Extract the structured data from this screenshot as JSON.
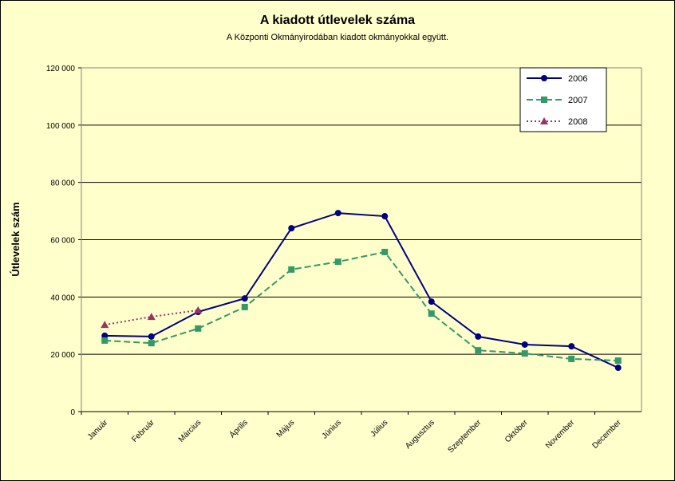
{
  "chart_data": {
    "type": "line",
    "title": "A  kiadott útlevelek száma",
    "subtitle": "A Központi Okmányirodában kiadott okmányokkal együtt.",
    "y_label": "Útlevelek szám",
    "categories": [
      "Január",
      "Február",
      "Március",
      "Április",
      "Május",
      "Június",
      "Július",
      "Augusztus",
      "Szeptember",
      "Október",
      "November",
      "December"
    ],
    "series": [
      {
        "name": "2006",
        "color": "#000080",
        "dash": "solid",
        "marker": "circle",
        "values": [
          26500,
          26200,
          34800,
          39500,
          64000,
          69300,
          68200,
          38400,
          26200,
          23400,
          22800,
          15300
        ]
      },
      {
        "name": "2007",
        "color": "#339966",
        "dash": "dashed",
        "marker": "square",
        "values": [
          24800,
          23900,
          29000,
          36500,
          49600,
          52300,
          55700,
          34200,
          21400,
          20300,
          18400,
          17800
        ]
      },
      {
        "name": "2008",
        "color": "#993366",
        "dash": "dotted",
        "marker": "triangle",
        "values": [
          30300,
          33100,
          35400,
          null,
          null,
          null,
          null,
          null,
          null,
          null,
          null,
          null
        ]
      }
    ],
    "ylim": [
      0,
      120000
    ],
    "yticks": [
      0,
      {
        "value": 20000,
        "label": "20 000"
      },
      {
        "value": 40000,
        "label": "40 000"
      },
      {
        "value": 60000,
        "label": "60 000"
      },
      {
        "value": 80000,
        "label": "80 000"
      },
      {
        "value": 100000,
        "label": "100 000"
      },
      {
        "value": 120000,
        "label": "120 000"
      }
    ],
    "grid": true,
    "legend": "top-right"
  }
}
